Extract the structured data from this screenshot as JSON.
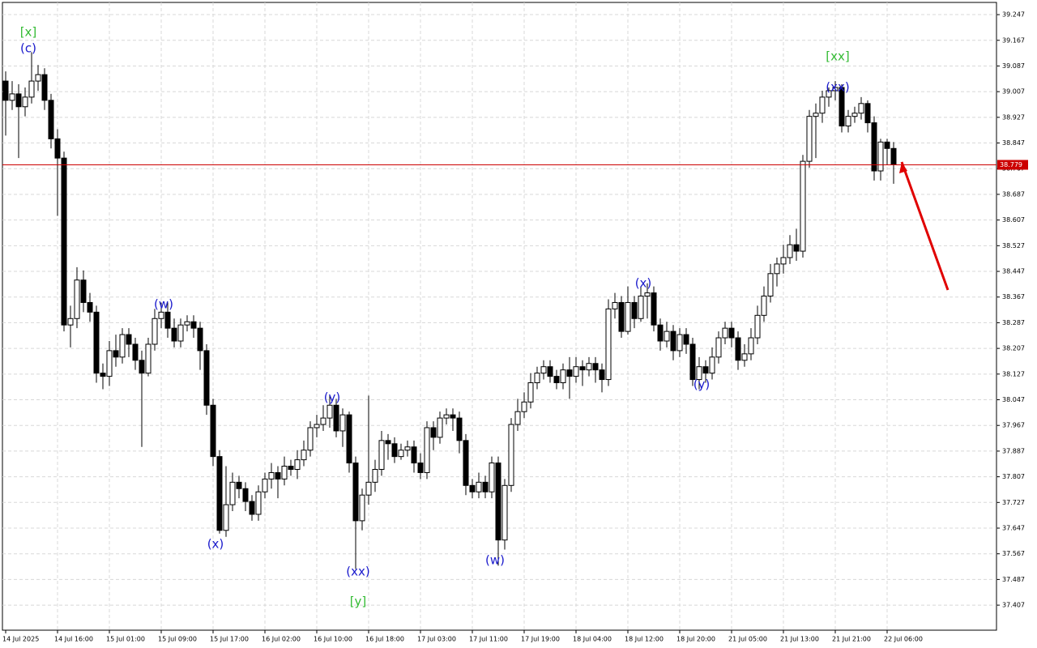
{
  "chart_data": {
    "type": "candlestick",
    "categories": [
      "14 Jul 2025",
      null,
      null,
      null,
      null,
      null,
      null,
      null,
      "14 Jul 16:00",
      null,
      null,
      null,
      null,
      null,
      null,
      null,
      "15 Jul 01:00",
      null,
      null,
      null,
      null,
      null,
      null,
      null,
      "15 Jul 09:00",
      null,
      null,
      null,
      null,
      null,
      null,
      null,
      "15 Jul 17:00",
      null,
      null,
      null,
      null,
      null,
      null,
      null,
      "16 Jul 02:00",
      null,
      null,
      null,
      null,
      null,
      null,
      null,
      "16 Jul 10:00",
      null,
      null,
      null,
      null,
      null,
      null,
      null,
      "16 Jul 18:00",
      null,
      null,
      null,
      null,
      null,
      null,
      null,
      "17 Jul 03:00",
      null,
      null,
      null,
      null,
      null,
      null,
      null,
      "17 Jul 11:00",
      null,
      null,
      null,
      null,
      null,
      null,
      null,
      "17 Jul 19:00",
      null,
      null,
      null,
      null,
      null,
      null,
      null,
      "18 Jul 04:00",
      null,
      null,
      null,
      null,
      null,
      null,
      null,
      "18 Jul 12:00",
      null,
      null,
      null,
      null,
      null,
      null,
      null,
      "18 Jul 20:00",
      null,
      null,
      null,
      null,
      null,
      null,
      null,
      "21 Jul 05:00",
      null,
      null,
      null,
      null,
      null,
      null,
      null,
      "21 Jul 13:00",
      null,
      null,
      null,
      null,
      null,
      null,
      null,
      "21 Jul 21:00",
      null,
      null,
      null,
      null,
      null,
      null,
      null,
      "22 Jul 06:00",
      null
    ],
    "open": [
      39.04,
      38.98,
      39.0,
      38.96,
      38.99,
      39.04,
      39.06,
      38.98,
      38.86,
      38.8,
      38.28,
      38.3,
      38.42,
      38.35,
      38.32,
      38.13,
      38.12,
      38.2,
      38.18,
      38.25,
      38.22,
      38.17,
      38.13,
      38.22,
      38.3,
      38.32,
      38.27,
      38.23,
      38.28,
      38.29,
      38.27,
      38.2,
      38.03,
      37.87,
      37.64,
      37.72,
      37.79,
      37.77,
      37.73,
      37.69,
      37.76,
      37.8,
      37.82,
      37.8,
      37.84,
      37.83,
      37.86,
      37.89,
      37.96,
      37.97,
      37.99,
      38.03,
      37.95,
      38.0,
      37.85,
      37.67,
      37.75,
      37.79,
      37.83,
      37.92,
      37.91,
      37.87,
      37.89,
      37.9,
      37.85,
      37.82,
      37.96,
      37.93,
      37.99,
      38.0,
      37.99,
      37.92,
      37.78,
      37.76,
      37.79,
      37.76,
      37.85,
      37.61,
      37.78,
      37.97,
      38.01,
      38.04,
      38.1,
      38.13,
      38.15,
      38.12,
      38.1,
      38.14,
      38.12,
      38.15,
      38.14,
      38.16,
      38.14,
      38.11,
      38.33,
      38.35,
      38.26,
      38.35,
      38.3,
      38.37,
      38.38,
      38.28,
      38.23,
      38.26,
      38.2,
      38.25,
      38.22,
      38.11,
      38.15,
      38.13,
      38.18,
      38.24,
      38.27,
      38.24,
      38.17,
      38.19,
      38.24,
      38.31,
      38.37,
      38.44,
      38.47,
      38.49,
      38.53,
      38.51,
      38.79,
      38.93,
      38.94,
      38.99,
      39.01,
      39.02,
      38.9,
      38.93,
      38.94,
      38.97,
      38.91,
      38.76,
      38.85,
      38.83
    ],
    "high": [
      39.07,
      39.04,
      39.03,
      39.02,
      39.13,
      39.09,
      39.08,
      39.0,
      38.89,
      38.82,
      38.34,
      38.46,
      38.45,
      38.38,
      38.34,
      38.16,
      38.23,
      38.25,
      38.27,
      38.27,
      38.24,
      38.2,
      38.24,
      38.33,
      38.35,
      38.35,
      38.3,
      38.3,
      38.31,
      38.31,
      38.29,
      38.22,
      38.05,
      37.89,
      37.84,
      37.82,
      37.81,
      37.79,
      37.75,
      37.78,
      37.82,
      37.85,
      37.84,
      37.87,
      37.86,
      37.89,
      37.92,
      37.98,
      38.0,
      38.03,
      38.06,
      38.05,
      38.02,
      38.01,
      37.87,
      37.77,
      38.06,
      37.86,
      37.95,
      37.94,
      37.93,
      37.91,
      37.92,
      37.92,
      37.88,
      37.98,
      37.98,
      38.01,
      38.02,
      38.02,
      38.01,
      37.94,
      37.8,
      37.82,
      37.81,
      37.87,
      37.87,
      37.8,
      37.99,
      38.05,
      38.07,
      38.13,
      38.15,
      38.17,
      38.17,
      38.14,
      38.16,
      38.18,
      38.18,
      38.17,
      38.18,
      38.18,
      38.16,
      38.36,
      38.38,
      38.37,
      38.4,
      38.37,
      38.4,
      38.41,
      38.4,
      38.3,
      38.29,
      38.28,
      38.27,
      38.27,
      38.24,
      38.18,
      38.17,
      38.21,
      38.26,
      38.29,
      38.29,
      38.26,
      38.22,
      38.27,
      38.34,
      38.4,
      38.47,
      38.49,
      38.53,
      38.56,
      38.58,
      38.81,
      38.95,
      38.97,
      39.01,
      39.02,
      39.04,
      39.03,
      38.95,
      38.96,
      38.99,
      38.98,
      38.93,
      38.86,
      38.86,
      38.85
    ],
    "low": [
      38.87,
      38.95,
      38.8,
      38.93,
      38.97,
      39.01,
      38.95,
      38.83,
      38.62,
      38.26,
      38.21,
      38.27,
      38.32,
      38.29,
      38.1,
      38.08,
      38.09,
      38.15,
      38.16,
      38.18,
      38.14,
      37.9,
      38.12,
      38.2,
      38.27,
      38.24,
      38.21,
      38.21,
      38.26,
      38.24,
      38.14,
      38.0,
      37.84,
      37.63,
      37.62,
      37.7,
      37.74,
      37.7,
      37.67,
      37.67,
      37.74,
      37.77,
      37.74,
      37.78,
      37.81,
      37.8,
      37.84,
      37.87,
      37.93,
      37.95,
      37.96,
      37.93,
      37.9,
      37.82,
      37.52,
      37.64,
      37.72,
      37.76,
      37.81,
      37.86,
      37.85,
      37.86,
      37.87,
      37.82,
      37.8,
      37.8,
      37.89,
      37.91,
      37.97,
      37.95,
      37.88,
      37.75,
      37.74,
      37.74,
      37.74,
      37.74,
      37.53,
      37.58,
      37.76,
      37.95,
      37.99,
      38.02,
      38.08,
      38.11,
      38.1,
      38.08,
      38.08,
      38.05,
      38.1,
      38.09,
      38.12,
      38.1,
      38.07,
      38.09,
      38.3,
      38.24,
      38.25,
      38.27,
      38.29,
      38.3,
      38.26,
      38.2,
      38.21,
      38.17,
      38.18,
      38.19,
      38.09,
      38.08,
      38.1,
      38.11,
      38.16,
      38.22,
      38.21,
      38.14,
      38.15,
      38.17,
      38.22,
      38.29,
      38.35,
      38.4,
      38.44,
      38.47,
      38.48,
      38.49,
      38.77,
      38.8,
      38.91,
      38.96,
      38.98,
      38.88,
      38.88,
      38.91,
      38.92,
      38.88,
      38.73,
      38.73,
      38.78,
      38.72
    ],
    "close": [
      38.98,
      39.0,
      38.96,
      38.99,
      39.04,
      39.06,
      38.98,
      38.86,
      38.8,
      38.28,
      38.3,
      38.42,
      38.35,
      38.32,
      38.13,
      38.12,
      38.2,
      38.18,
      38.25,
      38.22,
      38.17,
      38.13,
      38.22,
      38.3,
      38.32,
      38.27,
      38.23,
      38.28,
      38.29,
      38.27,
      38.2,
      38.03,
      37.87,
      37.64,
      37.72,
      37.79,
      37.77,
      37.73,
      37.69,
      37.76,
      37.8,
      37.82,
      37.8,
      37.84,
      37.83,
      37.86,
      37.89,
      37.96,
      37.97,
      37.99,
      38.03,
      37.95,
      38.0,
      37.85,
      37.67,
      37.75,
      37.79,
      37.83,
      37.92,
      37.91,
      37.87,
      37.89,
      37.9,
      37.85,
      37.82,
      37.96,
      37.93,
      37.99,
      38.0,
      37.99,
      37.92,
      37.78,
      37.76,
      37.79,
      37.76,
      37.85,
      37.61,
      37.78,
      37.97,
      38.01,
      38.04,
      38.1,
      38.13,
      38.15,
      38.12,
      38.1,
      38.14,
      38.12,
      38.15,
      38.14,
      38.16,
      38.14,
      38.11,
      38.33,
      38.35,
      38.26,
      38.35,
      38.3,
      38.37,
      38.38,
      38.28,
      38.23,
      38.26,
      38.2,
      38.25,
      38.22,
      38.11,
      38.15,
      38.13,
      38.18,
      38.24,
      38.27,
      38.24,
      38.17,
      38.19,
      38.24,
      38.31,
      38.37,
      38.44,
      38.47,
      38.49,
      38.53,
      38.51,
      38.79,
      38.93,
      38.94,
      38.99,
      39.01,
      39.02,
      38.9,
      38.93,
      38.94,
      38.97,
      38.91,
      38.76,
      38.85,
      38.83,
      38.779
    ],
    "up_color": "#ffffff",
    "down_color": "#000000",
    "ylim": [
      37.329,
      39.285
    ],
    "yticks": [
      39.247,
      39.167,
      39.087,
      39.007,
      38.927,
      38.847,
      38.767,
      38.687,
      38.607,
      38.527,
      38.447,
      38.367,
      38.287,
      38.207,
      38.127,
      38.047,
      37.967,
      37.887,
      37.807,
      37.727,
      37.647,
      37.567,
      37.487,
      37.407
    ],
    "grid": true,
    "current_price": 38.779,
    "current_price_color": "#cc0000",
    "annotations": [
      {
        "text": "[x]",
        "color": "#33bb33"
      },
      {
        "text": "(c)",
        "color": "#1a1acc"
      },
      {
        "text": "(w)",
        "color": "#1a1acc"
      },
      {
        "text": "(x)",
        "color": "#1a1acc"
      },
      {
        "text": "(y)",
        "color": "#1a1acc"
      },
      {
        "text": "(xx)",
        "color": "#1a1acc"
      },
      {
        "text": "[y]",
        "color": "#33bb33"
      },
      {
        "text": "(w)",
        "color": "#1a1acc"
      },
      {
        "text": "(x)",
        "color": "#1a1acc"
      },
      {
        "text": "(y)",
        "color": "#1a1acc"
      },
      {
        "text": "(xx)",
        "color": "#1a1acc"
      },
      {
        "text": "[xx]",
        "color": "#33bb33"
      }
    ]
  }
}
